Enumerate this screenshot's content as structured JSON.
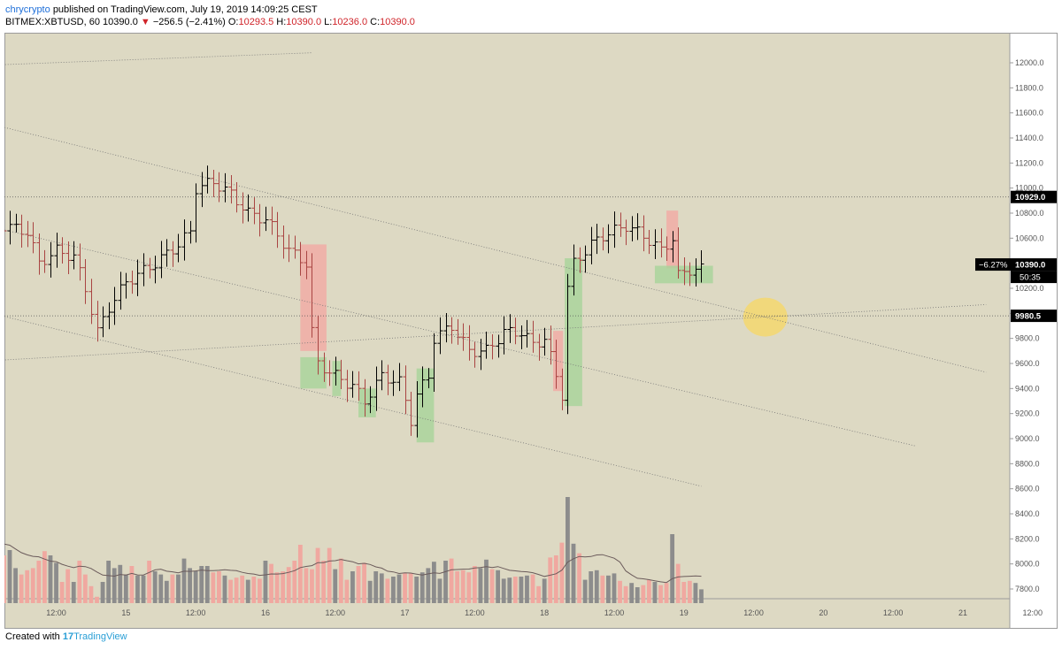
{
  "header": {
    "author": "chrycrypto",
    "published": "published on TradingView.com, July 19, 2019 14:09:25 CEST",
    "symbol": "BITMEX:XBTUSD, 60",
    "last": "10390.0",
    "arrow": "▼",
    "change": "−256.5 (−2.41%)",
    "o_label": "O:",
    "o": "10293.5",
    "h_label": "H:",
    "h": "10390.0",
    "l_label": "L:",
    "l": "10236.0",
    "c_label": "C:",
    "c": "10390.0"
  },
  "footer": {
    "created": "Created with",
    "logo": "17",
    "brand": "TradingView"
  },
  "colors": {
    "background": "#ddd9c3",
    "up_bar": "#000000",
    "down_bar": "#a94442",
    "vol_up": "#8c8c8c",
    "vol_down": "#f0a8a0",
    "box_red": "#f3a9a4",
    "box_green": "#a8d39a",
    "highlight": "#f5d76e",
    "author": "#1e6fd9",
    "down_text": "#d0242a"
  },
  "chart_data": {
    "type": "ohlc",
    "ylim": [
      7800,
      12100
    ],
    "y_ticks": [
      7800,
      8000,
      8200,
      8400,
      8600,
      8800,
      9000,
      9200,
      9400,
      9600,
      9800,
      10000,
      10200,
      10400,
      10600,
      10800,
      11000,
      11200,
      11400,
      11600,
      11800,
      12000
    ],
    "y_tick_labels": [
      "7800.0",
      "8000.0",
      "8200.0",
      "8400.0",
      "8600.0",
      "8800.0",
      "9000.0",
      "9200.0",
      "9400.0",
      "9600.0",
      "9800.0",
      "10000.0",
      "10200.0",
      "10400.0",
      "10600.0",
      "10800.0",
      "11000.0",
      "11200.0",
      "11400.0",
      "11600.0",
      "11800.0",
      "12000.0"
    ],
    "x_labels": [
      "12:00",
      "15",
      "12:00",
      "16",
      "12:00",
      "17",
      "12:00",
      "18",
      "12:00",
      "19",
      "12:00",
      "20",
      "12:00",
      "21",
      "12:00"
    ],
    "x_label_hours": [
      12,
      24,
      36,
      48,
      60,
      72,
      84,
      96,
      108,
      120,
      132,
      144,
      156,
      168,
      180
    ],
    "price_labels": [
      {
        "text": "10929.0",
        "value": 10929
      },
      {
        "text": "10390.0",
        "value": 10390,
        "pct": "−6.27%",
        "countdown": "50:35"
      },
      {
        "text": "9980.5",
        "value": 9980.5
      }
    ],
    "horizontal_lines": [
      10929,
      9980.5
    ],
    "trend_lines": [
      {
        "from": [
          0,
          11520
        ],
        "to": [
          172,
          9530
        ]
      },
      {
        "from": [
          0,
          10700
        ],
        "to": [
          160,
          8940
        ]
      },
      {
        "from": [
          0,
          10010
        ],
        "to": [
          123,
          8620
        ]
      },
      {
        "from": [
          0,
          9620
        ],
        "to": [
          172,
          10070
        ]
      },
      {
        "from": [
          0,
          11980
        ],
        "to": [
          56,
          12080
        ]
      }
    ],
    "boxes": [
      {
        "color": "red",
        "from": [
          54,
          10550
        ],
        "to": [
          58.5,
          9700
        ]
      },
      {
        "color": "green",
        "from": [
          54,
          9650
        ],
        "to": [
          58.5,
          9400
        ]
      },
      {
        "color": "green",
        "from": [
          59.5,
          9620
        ],
        "to": [
          61,
          9340
        ]
      },
      {
        "color": "green",
        "from": [
          64,
          9400
        ],
        "to": [
          67,
          9170
        ]
      },
      {
        "color": "green",
        "from": [
          74,
          9560
        ],
        "to": [
          77,
          8970
        ]
      },
      {
        "color": "red",
        "from": [
          97.5,
          9860
        ],
        "to": [
          99.2,
          9380
        ]
      },
      {
        "color": "green",
        "from": [
          99.5,
          10440
        ],
        "to": [
          102.5,
          9260
        ]
      },
      {
        "color": "red",
        "from": [
          117,
          10820
        ],
        "to": [
          119,
          10360
        ]
      },
      {
        "color": "green",
        "from": [
          115,
          10380
        ],
        "to": [
          125,
          10240
        ]
      }
    ],
    "highlight": {
      "hour": 134,
      "value": 9970
    },
    "volume": [
      0.71,
      0.64,
      0.43,
      0.45,
      0.5,
      0.33,
      0.27,
      0.31,
      0.33,
      0.4,
      0.49,
      0.45,
      0.38,
      0.2,
      0.32,
      0.2,
      0.4,
      0.27,
      0.16,
      0.06,
      0.2,
      0.4,
      0.33,
      0.36,
      0.27,
      0.35,
      0.26,
      0.26,
      0.4,
      0.3,
      0.27,
      0.21,
      0.27,
      0.27,
      0.42,
      0.33,
      0.3,
      0.35,
      0.35,
      0.29,
      0.3,
      0.26,
      0.22,
      0.24,
      0.26,
      0.22,
      0.25,
      0.23,
      0.4,
      0.37,
      0.29,
      0.3,
      0.34,
      0.4,
      0.55,
      0.33,
      0.32,
      0.52,
      0.4,
      0.52,
      0.32,
      0.42,
      0.22,
      0.3,
      0.35,
      0.38,
      0.21,
      0.3,
      0.28,
      0.23,
      0.25,
      0.27,
      0.28,
      0.28,
      0.25,
      0.29,
      0.33,
      0.39,
      0.23,
      0.4,
      0.42,
      0.3,
      0.31,
      0.29,
      0.35,
      0.33,
      0.41,
      0.32,
      0.31,
      0.23,
      0.24,
      0.25,
      0.25,
      0.26,
      0.27,
      0.16,
      0.23,
      0.43,
      0.45,
      0.57,
      1.0,
      0.56,
      0.47,
      0.22,
      0.3,
      0.31,
      0.26,
      0.26,
      0.28,
      0.21,
      0.16,
      0.19,
      0.15,
      0.17,
      0.22,
      0.2,
      0.17,
      0.19,
      0.65,
      0.37,
      0.2,
      0.21,
      0.19,
      0.13
    ]
  }
}
